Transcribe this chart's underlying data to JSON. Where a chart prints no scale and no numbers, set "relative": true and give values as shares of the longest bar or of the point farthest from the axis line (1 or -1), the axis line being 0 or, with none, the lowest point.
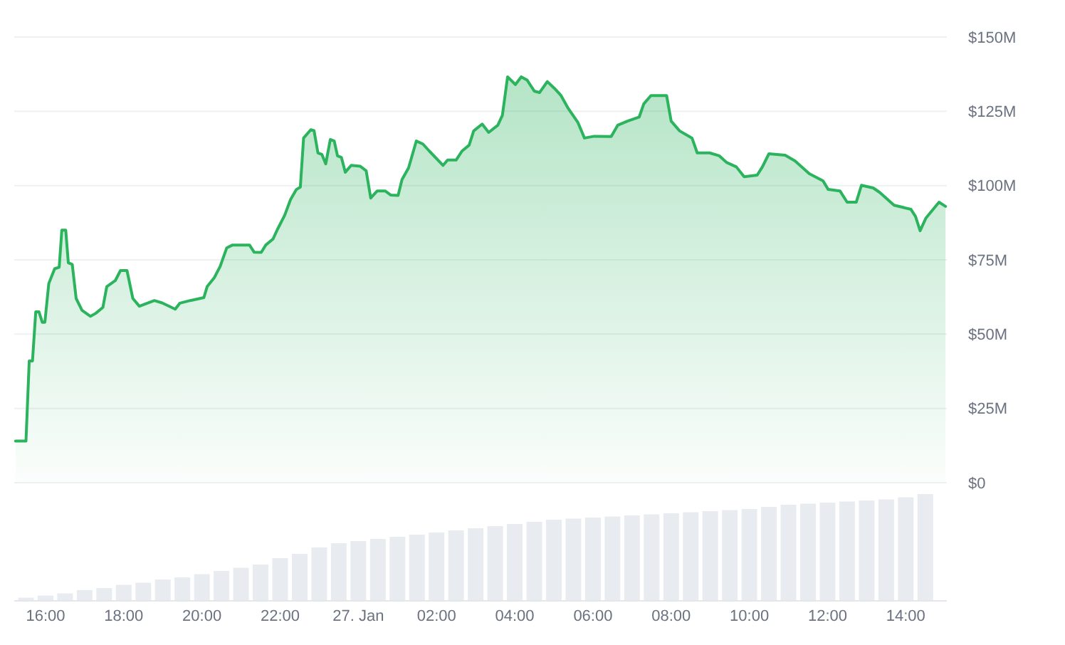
{
  "chart_data": [
    {
      "type": "area",
      "x": [
        "--01-26T15:14",
        "--01-26T15:30",
        "--01-26T15:35",
        "--01-26T15:40",
        "--01-26T15:45",
        "--01-26T15:50",
        "--01-26T15:55",
        "--01-26T15:59",
        "--01-26T16:05",
        "--01-26T16:14",
        "--01-26T16:21",
        "--01-26T16:25",
        "--01-26T16:31",
        "--01-26T16:35",
        "--01-26T16:41",
        "--01-26T16:47",
        "--01-26T16:56",
        "--01-26T17:09",
        "--01-26T17:17",
        "--01-26T17:28",
        "--01-26T17:34",
        "--01-26T17:47",
        "--01-26T17:55",
        "--01-26T18:05",
        "--01-26T18:14",
        "--01-26T18:24",
        "--01-26T18:47",
        "--01-26T18:59",
        "--01-26T19:19",
        "--01-26T19:26",
        "--01-26T19:42",
        "--01-26T20:03",
        "--01-26T20:08",
        "--01-26T20:19",
        "--01-26T20:28",
        "--01-26T20:38",
        "--01-26T20:47",
        "--01-26T21:13",
        "--01-26T21:20",
        "--01-26T21:31",
        "--01-26T21:38",
        "--01-26T21:49",
        "--01-26T21:56",
        "--01-26T22:07",
        "--01-26T22:16",
        "--01-26T22:25",
        "--01-26T22:31",
        "--01-26T22:36",
        "--01-26T22:47",
        "--01-26T22:52",
        "--01-26T22:58",
        "--01-26T23:04",
        "--01-26T23:10",
        "--01-26T23:17",
        "--01-26T23:23",
        "--01-26T23:28",
        "--01-26T23:34",
        "--01-26T23:40",
        "--01-26T23:49",
        "--01-27T00:03",
        "--01-27T00:12",
        "--01-27T00:19",
        "--01-27T00:29",
        "--01-27T00:41",
        "--01-27T00:50",
        "--01-27T01:01",
        "--01-27T01:07",
        "--01-27T01:17",
        "--01-27T01:29",
        "--01-27T01:39",
        "--01-27T01:49",
        "--01-27T02:10",
        "--01-27T02:17",
        "--01-27T02:30",
        "--01-27T02:39",
        "--01-27T02:50",
        "--01-27T02:57",
        "--01-27T03:10",
        "--01-27T03:20",
        "--01-27T03:34",
        "--01-27T03:41",
        "--01-27T03:49",
        "--01-27T04:01",
        "--01-27T04:10",
        "--01-27T04:19",
        "--01-27T04:30",
        "--01-27T04:38",
        "--01-27T04:50",
        "--01-27T05:01",
        "--01-27T05:11",
        "--01-27T05:22",
        "--01-27T05:37",
        "--01-27T05:47",
        "--01-27T06:02",
        "--01-27T06:28",
        "--01-27T06:38",
        "--01-27T06:53",
        "--01-27T07:11",
        "--01-27T07:18",
        "--01-27T07:29",
        "--01-27T07:53",
        "--01-27T08:00",
        "--01-27T08:13",
        "--01-27T08:32",
        "--01-27T08:40",
        "--01-27T08:59",
        "--01-27T09:14",
        "--01-27T09:25",
        "--01-27T09:40",
        "--01-27T09:52",
        "--01-27T10:12",
        "--01-27T10:20",
        "--01-27T10:30",
        "--01-27T10:55",
        "--01-27T11:10",
        "--01-27T11:32",
        "--01-27T11:53",
        "--01-27T12:01",
        "--01-27T12:19",
        "--01-27T12:30",
        "--01-27T12:44",
        "--01-27T12:52",
        "--01-27T13:10",
        "--01-27T13:20",
        "--01-27T13:42",
        "--01-27T14:08",
        "--01-27T14:15",
        "--01-27T14:22",
        "--01-27T14:31",
        "--01-27T14:51",
        "--01-27T15:01"
      ],
      "series": [
        {
          "color": "#2bb35e",
          "values": [
            14,
            14,
            41,
            41,
            57.5,
            57.5,
            54,
            54,
            67,
            72,
            72.5,
            85,
            85,
            74,
            73.5,
            62,
            58,
            56,
            57,
            59,
            66,
            68,
            71.4,
            71.4,
            62,
            59.4,
            61.3,
            60.5,
            58.4,
            60.4,
            61.3,
            62.3,
            66,
            69,
            72.8,
            79,
            80,
            80,
            77.6,
            77.5,
            80,
            82,
            85.3,
            90,
            95.3,
            98.7,
            99.5,
            116,
            118.8,
            118.5,
            111,
            110.5,
            107.3,
            115.5,
            115,
            110,
            109.5,
            104.5,
            106.8,
            106.5,
            105,
            95.8,
            98.2,
            98.2,
            96.8,
            96.7,
            102,
            105.9,
            115,
            114,
            111.6,
            106.8,
            108.6,
            108.6,
            111.6,
            113.6,
            118.4,
            120.7,
            117.9,
            120.3,
            123.6,
            136.6,
            134,
            136.6,
            135.5,
            131.8,
            131.3,
            135,
            132.7,
            130.3,
            126,
            121.2,
            116,
            116.6,
            116.5,
            120.3,
            121.7,
            123.1,
            127.5,
            130.3,
            130.3,
            121.7,
            118.4,
            116,
            111,
            111,
            110,
            107.8,
            106.3,
            103,
            103.5,
            106.3,
            110.7,
            110.2,
            108.3,
            104,
            101.6,
            98.7,
            98.2,
            94.4,
            94.4,
            100.1,
            99.2,
            97.7,
            93.4,
            92,
            89.6,
            84.8,
            89.1,
            94.4,
            93
          ]
        }
      ],
      "xlim": [
        "--01-26T15:12",
        "--01-27T15:03"
      ],
      "ylim": [
        0,
        150
      ],
      "yticks": [
        {
          "value": 0,
          "label": "$0"
        },
        {
          "value": 25,
          "label": "$25M"
        },
        {
          "value": 50,
          "label": "$50M"
        },
        {
          "value": 75,
          "label": "$75M"
        },
        {
          "value": 100,
          "label": "$100M"
        },
        {
          "value": 125,
          "label": "$125M"
        },
        {
          "value": 150,
          "label": "$150M"
        }
      ],
      "grid": "y",
      "tick_labels": "y"
    },
    {
      "type": "bar",
      "relative": true,
      "x": [
        "--01-26T15:30",
        "--01-26T16:00",
        "--01-26T16:30",
        "--01-26T17:00",
        "--01-26T17:30",
        "--01-26T18:00",
        "--01-26T18:30",
        "--01-26T19:00",
        "--01-26T19:30",
        "--01-26T20:00",
        "--01-26T20:30",
        "--01-26T21:00",
        "--01-26T21:30",
        "--01-26T22:00",
        "--01-26T22:30",
        "--01-26T23:00",
        "--01-26T23:30",
        "--01-27T00:00",
        "--01-27T00:30",
        "--01-27T01:00",
        "--01-27T01:30",
        "--01-27T02:00",
        "--01-27T02:30",
        "--01-27T03:00",
        "--01-27T03:30",
        "--01-27T04:00",
        "--01-27T04:30",
        "--01-27T05:00",
        "--01-27T05:30",
        "--01-27T06:00",
        "--01-27T06:30",
        "--01-27T07:00",
        "--01-27T07:30",
        "--01-27T08:00",
        "--01-27T08:30",
        "--01-27T09:00",
        "--01-27T09:30",
        "--01-27T10:00",
        "--01-27T10:30",
        "--01-27T11:00",
        "--01-27T11:30",
        "--01-27T12:00",
        "--01-27T12:30",
        "--01-27T13:00",
        "--01-27T13:30",
        "--01-27T14:00",
        "--01-27T14:30"
      ],
      "series": [
        {
          "color": "#e8ebef",
          "values": [
            0.03,
            0.05,
            0.07,
            0.1,
            0.12,
            0.15,
            0.17,
            0.2,
            0.22,
            0.25,
            0.28,
            0.31,
            0.34,
            0.4,
            0.44,
            0.5,
            0.54,
            0.56,
            0.58,
            0.6,
            0.62,
            0.64,
            0.66,
            0.68,
            0.7,
            0.72,
            0.74,
            0.76,
            0.77,
            0.78,
            0.79,
            0.8,
            0.81,
            0.82,
            0.83,
            0.84,
            0.85,
            0.86,
            0.88,
            0.9,
            0.91,
            0.92,
            0.93,
            0.94,
            0.95,
            0.97,
            1
          ]
        }
      ],
      "xlim": [
        "--01-26T15:12",
        "--01-27T15:03"
      ],
      "xticks": [
        {
          "value": "--01-26T16:00",
          "label": "16:00"
        },
        {
          "value": "--01-26T18:00",
          "label": "18:00"
        },
        {
          "value": "--01-26T20:00",
          "label": "20:00"
        },
        {
          "value": "--01-26T22:00",
          "label": "22:00"
        },
        {
          "value": "--01-27T00:00",
          "label": "27. Jan"
        },
        {
          "value": "--01-27T02:00",
          "label": "02:00"
        },
        {
          "value": "--01-27T04:00",
          "label": "04:00"
        },
        {
          "value": "--01-27T06:00",
          "label": "06:00"
        },
        {
          "value": "--01-27T08:00",
          "label": "08:00"
        },
        {
          "value": "--01-27T10:00",
          "label": "10:00"
        },
        {
          "value": "--01-27T12:00",
          "label": "12:00"
        },
        {
          "value": "--01-27T14:00",
          "label": "14:00"
        }
      ],
      "tick_labels": "x"
    }
  ]
}
